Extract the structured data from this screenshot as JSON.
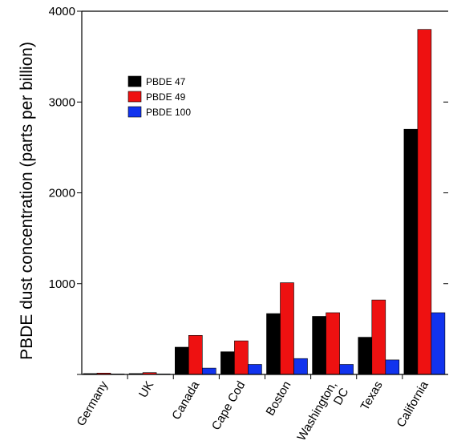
{
  "chart_data": {
    "type": "bar",
    "title": "",
    "xlabel": "",
    "ylabel": "PBDE dust concentration (parts per billion)",
    "ylim": [
      0,
      4000
    ],
    "yticks": [
      0,
      1000,
      2000,
      3000,
      4000
    ],
    "ytick_labels": [
      "",
      "1000",
      "2000",
      "3000",
      "4000"
    ],
    "grid": false,
    "legend_position": "upper-left",
    "categories": [
      "Germany",
      "UK",
      "Canada",
      "Cape Cod",
      "Boston",
      "Washington, DC",
      "Texas",
      "California"
    ],
    "category_labels": [
      [
        "Germany"
      ],
      [
        "UK"
      ],
      [
        "Canada"
      ],
      [
        "Cape Cod"
      ],
      [
        "Boston"
      ],
      [
        "Washington,",
        "DC"
      ],
      [
        "Texas"
      ],
      [
        "California"
      ]
    ],
    "series": [
      {
        "name": "PBDE 47",
        "color": "#000000",
        "values": [
          10,
          10,
          300,
          250,
          670,
          640,
          410,
          2700
        ]
      },
      {
        "name": "PBDE 49",
        "color": "#ee1111",
        "values": [
          15,
          20,
          430,
          370,
          1010,
          680,
          820,
          3800
        ]
      },
      {
        "name": "PBDE 100",
        "color": "#1133ee",
        "values": [
          5,
          5,
          70,
          110,
          175,
          110,
          160,
          680
        ]
      }
    ]
  }
}
